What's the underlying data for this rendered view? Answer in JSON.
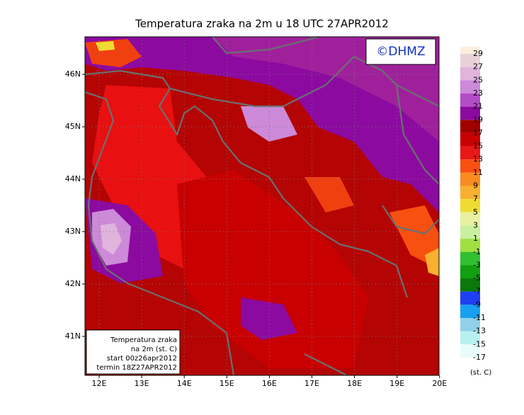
{
  "title": "Temperatura zraka na 2m u 18 UTC 27APR2012",
  "logo": "©DHMZ",
  "info_box": [
    "Temperatura zraka",
    "na 2m (st. C)",
    "start 00z26apr2012",
    "termin 18Z27APR2012"
  ],
  "lon_labels": [
    "12E",
    "13E",
    "14E",
    "15E",
    "16E",
    "17E",
    "18E",
    "19E",
    "20E"
  ],
  "lat_labels": [
    "46N",
    "45N",
    "44N",
    "43N",
    "42N",
    "41N"
  ],
  "colorbar": {
    "levels": [
      29,
      27,
      25,
      23,
      21,
      19,
      17,
      15,
      13,
      11,
      9,
      7,
      5,
      3,
      1,
      -1,
      -3,
      -5,
      -7,
      -9,
      -11,
      -13,
      -15,
      -17
    ],
    "colors": [
      "#fdeede",
      "#e8d2d8",
      "#e0b4dc",
      "#cc8ad8",
      "#b44cc8",
      "#8c0aa0",
      "#a00000",
      "#c80000",
      "#e81818",
      "#f85010",
      "#f88c20",
      "#f8b030",
      "#f0dc30",
      "#e8f0a0",
      "#c8f0a0",
      "#a0e040",
      "#30c030",
      "#10a010",
      "#0a780a",
      "#1e40f0",
      "#18a0f0",
      "#90d0e8",
      "#b8f0f0",
      "#e8fcfc",
      "#ffffff"
    ],
    "unit": "(st. C)"
  }
}
